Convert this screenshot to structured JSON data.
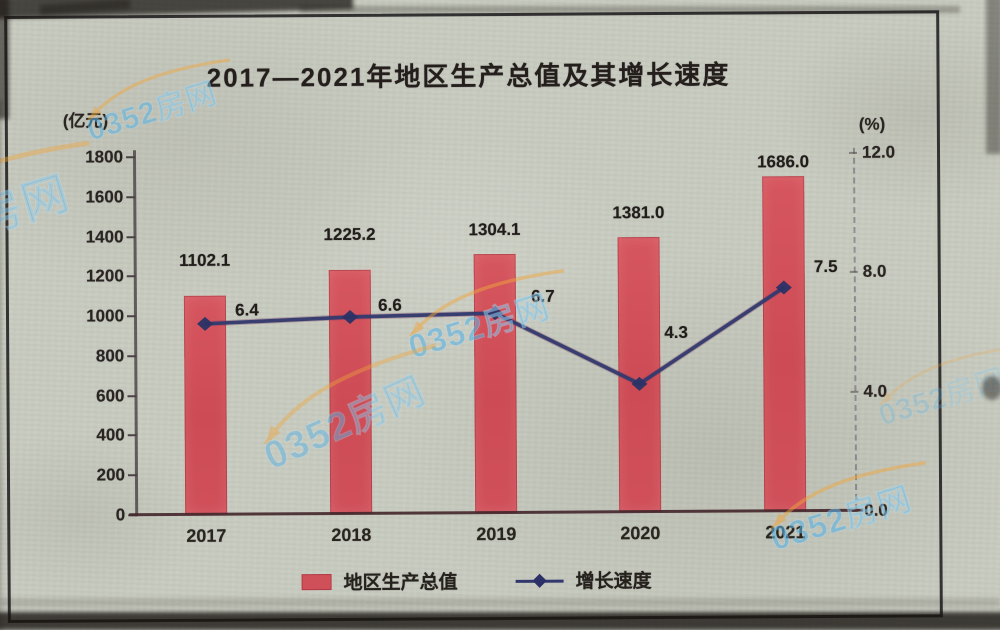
{
  "title": "2017—2021年地区生产总值及其增长速度",
  "axes": {
    "left": {
      "unit": "(亿元)",
      "range": [
        0,
        1800
      ],
      "ticks": [
        0,
        200,
        400,
        600,
        800,
        1000,
        1200,
        1400,
        1600,
        1800
      ]
    },
    "right": {
      "unit": "(%)",
      "range": [
        0,
        12
      ],
      "ticks": [
        0,
        4,
        8,
        12
      ]
    }
  },
  "chart_data": {
    "type": "bar",
    "title": "2017—2021年地区生产总值及其增长速度",
    "categories": [
      "2017",
      "2018",
      "2019",
      "2020",
      "2021"
    ],
    "series": [
      {
        "name": "地区生产总值",
        "type": "bar",
        "axis": "left",
        "color": "#d0505a",
        "values": [
          1102.1,
          1225.2,
          1304.1,
          1381.0,
          1686.0
        ]
      },
      {
        "name": "增长速度",
        "type": "line",
        "axis": "right",
        "color": "#32386e",
        "marker": "diamond",
        "values": [
          6.4,
          6.6,
          6.7,
          4.3,
          7.5
        ]
      }
    ],
    "xlabel": "",
    "ylabel_left": "(亿元)",
    "ylabel_right": "(%)",
    "ylim_left": [
      0,
      1800
    ],
    "ylim_right": [
      0,
      12
    ],
    "grid": false,
    "legend_position": "bottom"
  },
  "legend": {
    "items": [
      {
        "label": "地区生产总值",
        "marker": "square",
        "color": "#d0505a"
      },
      {
        "label": "增长速度",
        "marker": "line-diamond",
        "color": "#32386e"
      }
    ]
  },
  "watermark": {
    "text": "0352房网",
    "text_color": "#56b2e4",
    "swoosh_color": "#eda43c"
  },
  "colors": {
    "paper": "#c7cabf",
    "bar": "#d0505a",
    "line": "#32386e",
    "ink": "#26231f",
    "frame": "#201e20"
  }
}
